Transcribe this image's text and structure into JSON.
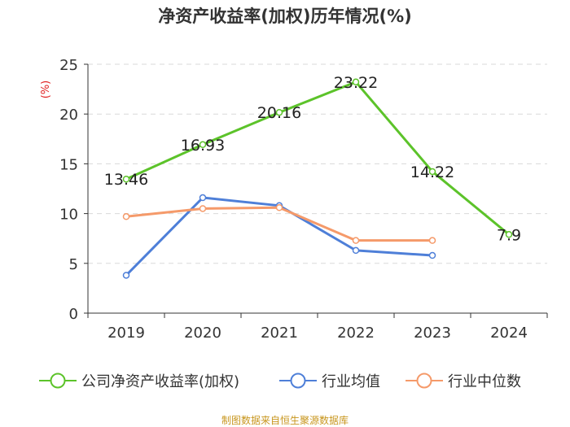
{
  "chart_data": {
    "type": "line",
    "title": "净资产收益率(加权)历年情况(%)",
    "ylabel": "(%)",
    "xlabel": "",
    "ylim": [
      0,
      25
    ],
    "yticks": [
      0,
      5,
      10,
      15,
      20,
      25
    ],
    "categories": [
      "2019",
      "2020",
      "2021",
      "2022",
      "2023",
      "2024"
    ],
    "grid": true,
    "legend_position": "bottom",
    "series": [
      {
        "name": "公司净资产收益率(加权)",
        "color": "#5cc32a",
        "values": [
          13.46,
          16.93,
          20.16,
          23.22,
          14.22,
          7.9
        ],
        "labels": [
          "13.46",
          "16.93",
          "20.16",
          "23.22",
          "14.22",
          "7.9"
        ]
      },
      {
        "name": "行业均值",
        "color": "#4e7fd8",
        "values": [
          3.8,
          11.6,
          10.8,
          6.3,
          5.8,
          null
        ],
        "labels": null
      },
      {
        "name": "行业中位数",
        "color": "#f59a6a",
        "values": [
          9.7,
          10.5,
          10.6,
          7.3,
          7.3,
          null
        ],
        "labels": null
      }
    ],
    "source": "制图数据来自恒生聚源数据库"
  }
}
